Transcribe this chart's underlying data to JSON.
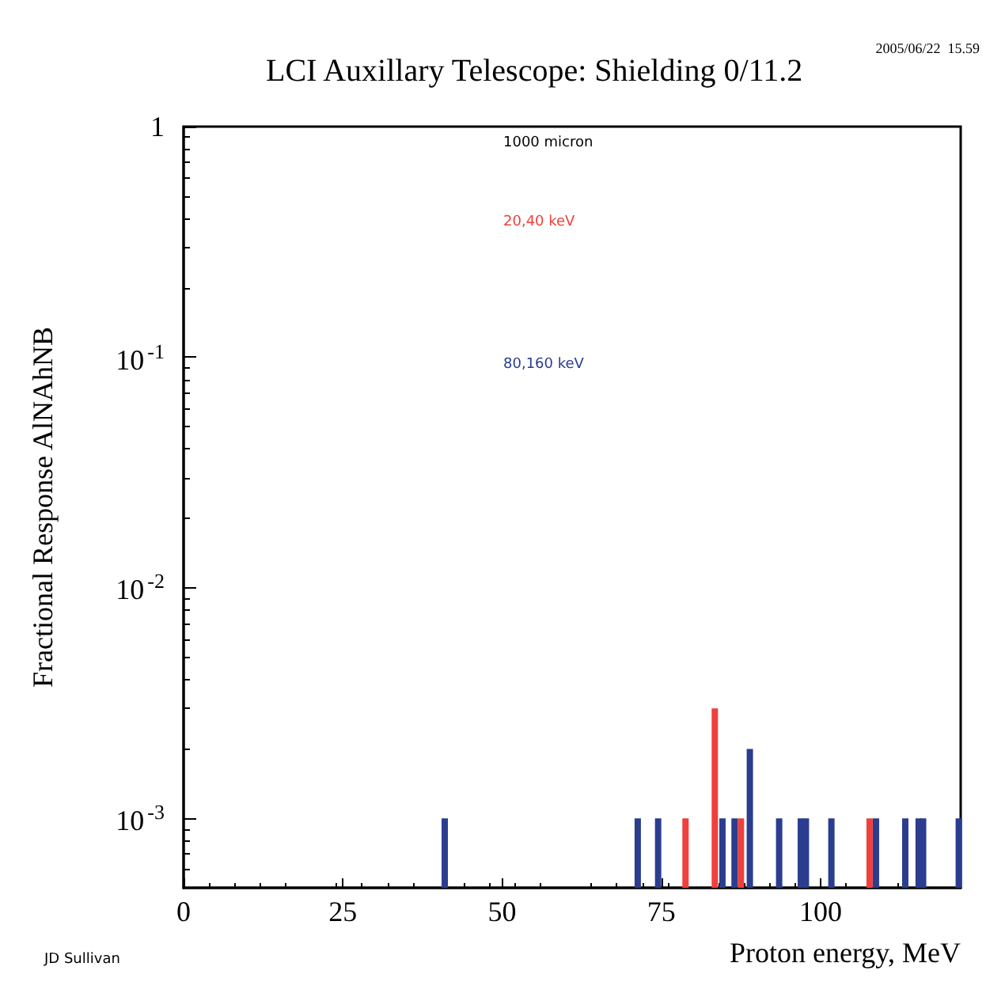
{
  "chart_data": {
    "type": "bar",
    "title": "LCI Auxillary Telescope: Shielding 0/11.2",
    "xlabel": "Proton energy, MeV",
    "ylabel": "Fractional Response AlNAhNB",
    "log": "y",
    "xlim": [
      0,
      122
    ],
    "xticks": [
      0,
      25,
      50,
      75,
      100
    ],
    "ylim": [
      0.0005,
      1
    ],
    "yticks": [
      {
        "value": 0.001,
        "label": "10$^{-3}$"
      },
      {
        "value": 0.01,
        "label": "10$^{-2}$"
      },
      {
        "value": 0.1,
        "label": "10$^{-1}$"
      },
      1
    ],
    "grid": false,
    "annotations": [
      "2005/06/22  15.59",
      "1000 micron",
      "JD Sullivan"
    ],
    "series": [
      {
        "name": "20,40 keV",
        "color": "#f0403c",
        "x": [
          78.8,
          83.4,
          87.5,
          107.7
        ],
        "values": [
          0.001,
          0.003,
          0.001,
          0.001
        ]
      },
      {
        "name": "80,160 keV",
        "color": "#2a3d8f",
        "x": [
          41,
          71.3,
          74.5,
          84.6,
          86.5,
          88.9,
          93.5,
          96.9,
          97.7,
          101.7,
          108.7,
          113.3,
          115.4,
          116.1,
          121.7
        ],
        "values": [
          0.001,
          0.001,
          0.001,
          0.001,
          0.001,
          0.002,
          0.001,
          0.001,
          0.001,
          0.001,
          0.001,
          0.001,
          0.001,
          0.001,
          0.001
        ]
      }
    ]
  }
}
